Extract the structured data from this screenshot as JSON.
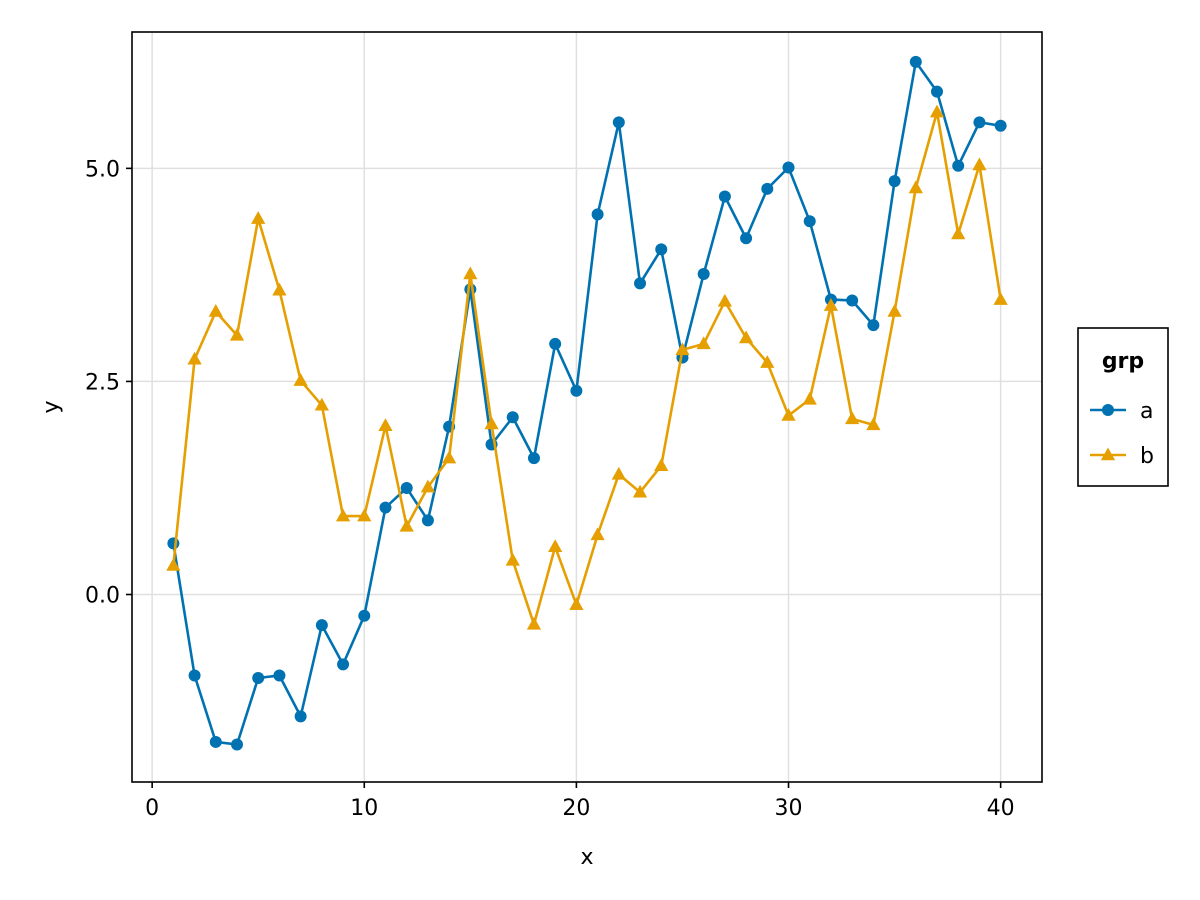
{
  "chart_data": {
    "type": "line",
    "title": "",
    "xlabel": "x",
    "ylabel": "y",
    "xlim": [
      -0.95,
      41.95
    ],
    "ylim": [
      -2.2,
      6.6
    ],
    "xticks": [
      0,
      10,
      20,
      30,
      40
    ],
    "xtick_labels": [
      "0",
      "10",
      "20",
      "30",
      "40"
    ],
    "yticks": [
      0.0,
      2.5,
      5.0
    ],
    "ytick_labels": [
      "0.0",
      "2.5",
      "5.0"
    ],
    "grid": true,
    "legend": {
      "title": "grp",
      "placement": "right"
    },
    "x": [
      1,
      2,
      3,
      4,
      5,
      6,
      7,
      8,
      9,
      10,
      11,
      12,
      13,
      14,
      15,
      16,
      17,
      18,
      19,
      20,
      21,
      22,
      23,
      24,
      25,
      26,
      27,
      28,
      29,
      30,
      31,
      32,
      33,
      34,
      35,
      36,
      37,
      38,
      39,
      40
    ],
    "series": [
      {
        "name": "a",
        "color": "#0072b2",
        "marker": "circle",
        "values": [
          0.6,
          -0.95,
          -1.73,
          -1.76,
          -0.98,
          -0.95,
          -1.43,
          -0.36,
          -0.82,
          -0.25,
          1.02,
          1.25,
          0.87,
          1.97,
          3.58,
          1.76,
          2.08,
          1.6,
          2.94,
          2.39,
          4.46,
          5.54,
          3.65,
          4.05,
          2.78,
          3.76,
          4.67,
          4.18,
          4.76,
          5.01,
          4.38,
          3.46,
          3.45,
          3.16,
          4.85,
          6.25,
          5.9,
          5.03,
          5.54,
          5.5
        ]
      },
      {
        "name": "b",
        "color": "#e69f00",
        "marker": "triangle",
        "values": [
          0.34,
          2.76,
          3.32,
          3.04,
          4.41,
          3.57,
          2.51,
          2.22,
          0.92,
          0.92,
          1.98,
          0.8,
          1.26,
          1.6,
          3.76,
          2.0,
          0.4,
          -0.35,
          0.56,
          -0.12,
          0.7,
          1.41,
          1.2,
          1.51,
          2.87,
          2.94,
          3.44,
          3.01,
          2.72,
          2.1,
          2.29,
          3.39,
          2.06,
          1.99,
          3.32,
          4.77,
          5.66,
          4.23,
          5.04,
          3.46
        ]
      }
    ]
  }
}
